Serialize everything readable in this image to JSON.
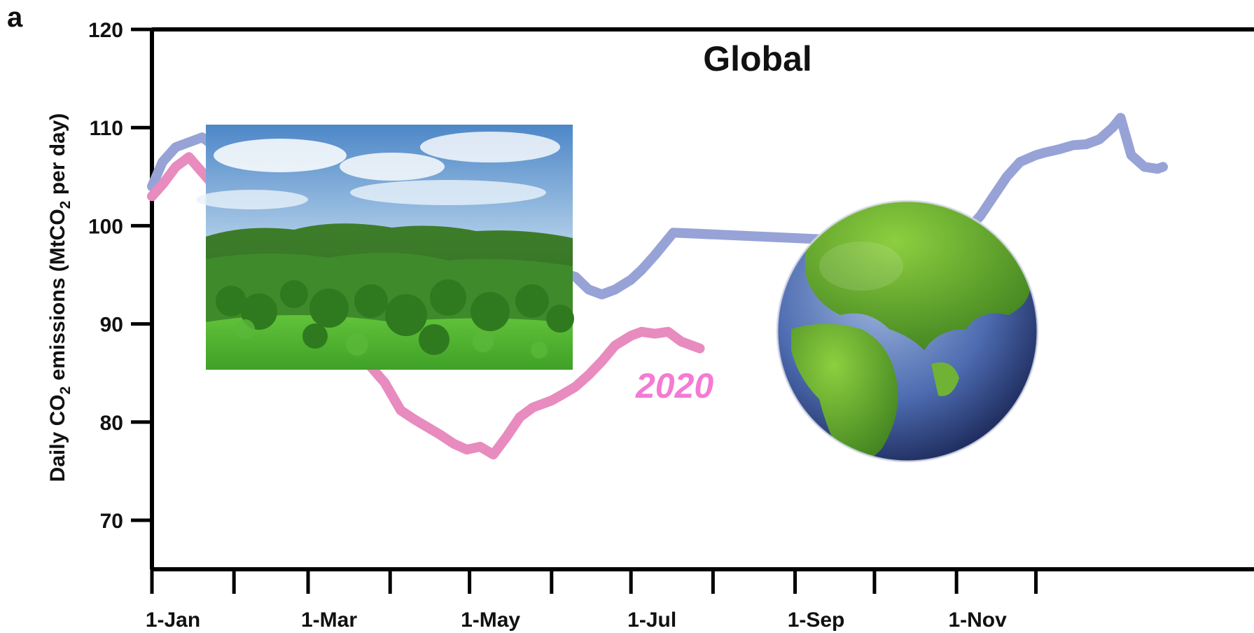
{
  "panel_label": "a",
  "chart_data": {
    "type": "line",
    "title": "Global",
    "xlabel": "",
    "ylabel": "Daily CO₂ emissions (MtCO₂ per day)",
    "ylabel_parts": {
      "a": "Daily CO",
      "sub1": "2",
      "b": " emissions (MtCO",
      "sub2": "2",
      "c": " per day)"
    },
    "x_ticks": [
      "1-Jan",
      "1-Mar",
      "1-May",
      "1-Jul",
      "1-Sep",
      "1-Nov"
    ],
    "y_ticks": [
      "70",
      "80",
      "90",
      "100",
      "110",
      "120"
    ],
    "ylim": [
      65,
      120
    ],
    "grid": false,
    "series": [
      {
        "name": "",
        "color": "#97a3d6",
        "points": [
          [
            "2019-01-01",
            104
          ],
          [
            "2019-01-05",
            106.5
          ],
          [
            "2019-01-10",
            108
          ],
          [
            "2019-01-20",
            109
          ],
          [
            "2019-04-15",
            92.5
          ],
          [
            "2019-04-25",
            92.2
          ],
          [
            "2019-05-01",
            91.8
          ],
          [
            "2019-05-05",
            92.5
          ],
          [
            "2019-05-10",
            93.3
          ],
          [
            "2019-05-15",
            94
          ],
          [
            "2019-05-20",
            94.8
          ],
          [
            "2019-05-25",
            95.3
          ],
          [
            "2019-06-01",
            95.4
          ],
          [
            "2019-06-05",
            95.2
          ],
          [
            "2019-06-10",
            94.8
          ],
          [
            "2019-06-15",
            93.5
          ],
          [
            "2019-06-20",
            93
          ],
          [
            "2019-06-25",
            93.5
          ],
          [
            "2019-07-01",
            94.5
          ],
          [
            "2019-07-05",
            95.5
          ],
          [
            "2019-07-10",
            97
          ],
          [
            "2019-07-17",
            99.3
          ],
          [
            "2019-11-01",
            98
          ],
          [
            "2019-11-05",
            99.5
          ],
          [
            "2019-11-10",
            101
          ],
          [
            "2019-11-15",
            103
          ],
          [
            "2019-11-20",
            105
          ],
          [
            "2019-11-25",
            106.5
          ],
          [
            "2019-12-01",
            107.2
          ],
          [
            "2019-12-05",
            107.5
          ],
          [
            "2019-12-10",
            107.8
          ],
          [
            "2019-12-15",
            108.2
          ],
          [
            "2019-12-20",
            108.3
          ],
          [
            "2019-12-25",
            108.8
          ],
          [
            "2019-12-30",
            110
          ],
          [
            "2020-01-02",
            111
          ],
          [
            "2020-01-06",
            107.2
          ],
          [
            "2020-01-11",
            106
          ],
          [
            "2020-01-16",
            105.8
          ],
          [
            "2020-01-18",
            106
          ]
        ]
      },
      {
        "name": "2020",
        "color": "#e88bbe",
        "label_color": "#f47ad4",
        "points": [
          [
            "2019-01-01",
            103
          ],
          [
            "2019-01-05",
            104.2
          ],
          [
            "2019-01-10",
            106
          ],
          [
            "2019-01-15",
            107
          ],
          [
            "2019-03-30",
            84
          ],
          [
            "2019-04-05",
            81.2
          ],
          [
            "2019-04-10",
            80.3
          ],
          [
            "2019-04-15",
            79.5
          ],
          [
            "2019-04-20",
            78.7
          ],
          [
            "2019-04-25",
            77.8
          ],
          [
            "2019-04-30",
            77.2
          ],
          [
            "2019-05-05",
            77.5
          ],
          [
            "2019-05-10",
            76.7
          ],
          [
            "2019-05-15",
            78.5
          ],
          [
            "2019-05-20",
            80.5
          ],
          [
            "2019-05-25",
            81.5
          ],
          [
            "2019-06-01",
            82.2
          ],
          [
            "2019-06-05",
            82.8
          ],
          [
            "2019-06-10",
            83.6
          ],
          [
            "2019-06-15",
            84.8
          ],
          [
            "2019-06-20",
            86.2
          ],
          [
            "2019-06-25",
            87.8
          ],
          [
            "2019-07-01",
            88.8
          ],
          [
            "2019-07-05",
            89.2
          ],
          [
            "2019-07-10",
            89
          ],
          [
            "2019-07-15",
            89.2
          ],
          [
            "2019-07-20",
            88.2
          ],
          [
            "2019-07-27",
            87.5
          ]
        ]
      }
    ]
  },
  "overlays": [
    {
      "name": "landscape-photo",
      "description_icon": "green-hills-photo"
    },
    {
      "name": "earth-globe-image",
      "description_icon": "green-earth-globe"
    }
  ]
}
